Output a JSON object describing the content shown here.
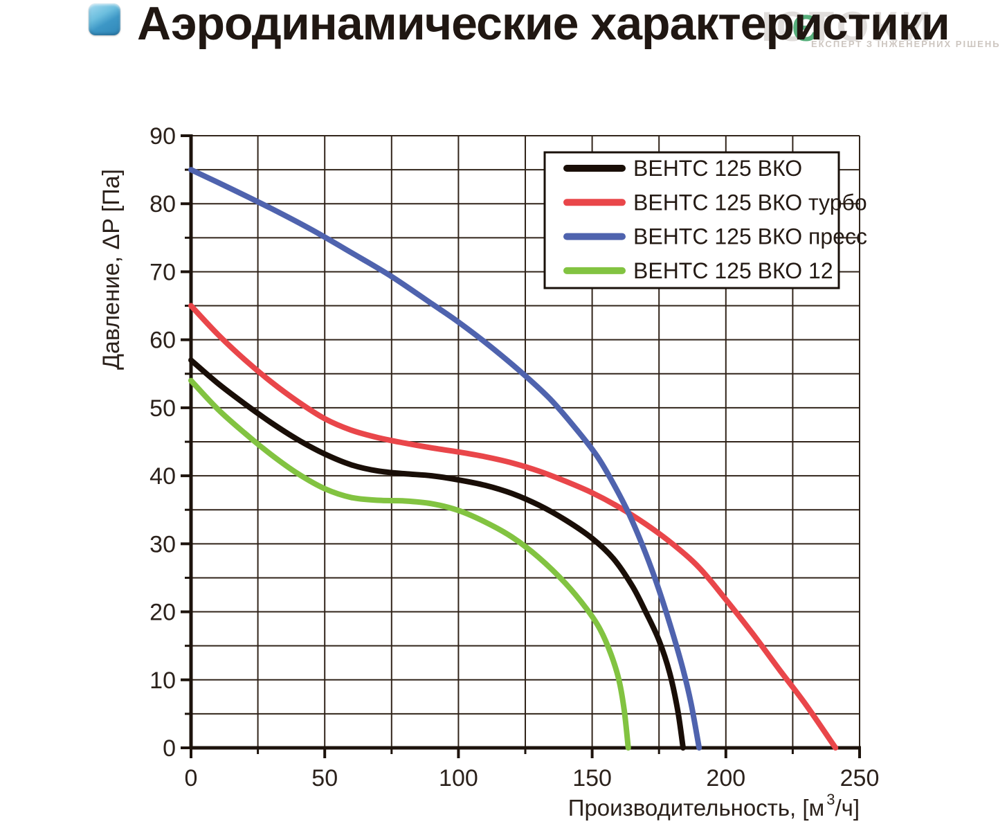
{
  "page": {
    "title": "Аэродинамические характеристики"
  },
  "watermark": {
    "text": "ІСТОКИ",
    "accent_glyph": "Є",
    "subtitle": "ЕКСПЕРТ З ІНЖЕНЕРНИХ РІШЕНЬ"
  },
  "chart_data": {
    "type": "line",
    "title": "",
    "xlabel_prefix": "Производительность, [м",
    "xlabel_sup": "3",
    "xlabel_suffix": "/ч]",
    "ylabel": "Давление, ΔP [Па]",
    "xlim": [
      0,
      250
    ],
    "ylim": [
      0,
      90
    ],
    "x_major_ticks": [
      0,
      50,
      100,
      150,
      200,
      250
    ],
    "y_major_ticks": [
      0,
      10,
      20,
      30,
      40,
      50,
      60,
      70,
      80,
      90
    ],
    "x_grid_step": 25,
    "y_grid_step": 5,
    "grid": true,
    "legend_position": "top-right",
    "colors": {
      "grid": "#31241a",
      "axis": "#1d130c",
      "tick_text": "#2b211b",
      "legend_border": "#19100a",
      "legend_text": "#241a14"
    },
    "series": [
      {
        "name": "ВЕНТС 125 ВКО",
        "color": "#190e07",
        "points": [
          [
            0,
            57
          ],
          [
            10,
            53.6
          ],
          [
            20,
            50.6
          ],
          [
            30,
            47.8
          ],
          [
            40,
            45.3
          ],
          [
            50,
            43.2
          ],
          [
            60,
            41.6
          ],
          [
            70,
            40.7
          ],
          [
            80,
            40.3
          ],
          [
            90,
            40.0
          ],
          [
            100,
            39.4
          ],
          [
            110,
            38.6
          ],
          [
            120,
            37.4
          ],
          [
            130,
            35.7
          ],
          [
            140,
            33.5
          ],
          [
            150,
            30.8
          ],
          [
            158,
            27.8
          ],
          [
            165,
            23.8
          ],
          [
            170,
            20.0
          ],
          [
            175,
            15.8
          ],
          [
            179,
            11.0
          ],
          [
            182,
            5.5
          ],
          [
            184,
            0
          ]
        ]
      },
      {
        "name": "ВЕНТС 125 ВКО турбо",
        "color": "#e9464a",
        "points": [
          [
            0,
            65
          ],
          [
            10,
            60.8
          ],
          [
            20,
            57.1
          ],
          [
            30,
            53.8
          ],
          [
            40,
            50.9
          ],
          [
            50,
            48.4
          ],
          [
            60,
            46.7
          ],
          [
            70,
            45.6
          ],
          [
            80,
            44.8
          ],
          [
            90,
            44.1
          ],
          [
            100,
            43.5
          ],
          [
            110,
            42.8
          ],
          [
            120,
            41.9
          ],
          [
            130,
            40.7
          ],
          [
            140,
            39.2
          ],
          [
            150,
            37.5
          ],
          [
            160,
            35.4
          ],
          [
            170,
            32.9
          ],
          [
            180,
            30.0
          ],
          [
            190,
            26.5
          ],
          [
            200,
            21.8
          ],
          [
            210,
            16.8
          ],
          [
            220,
            11.5
          ],
          [
            230,
            6.3
          ],
          [
            241,
            0
          ]
        ]
      },
      {
        "name": "ВЕНТС 125 ВКО пресс",
        "color": "#4f63ae",
        "points": [
          [
            0,
            85
          ],
          [
            15,
            82.2
          ],
          [
            30,
            79.3
          ],
          [
            45,
            76.2
          ],
          [
            60,
            72.8
          ],
          [
            75,
            69.3
          ],
          [
            90,
            65.3
          ],
          [
            100,
            62.6
          ],
          [
            112,
            59.0
          ],
          [
            125,
            54.7
          ],
          [
            135,
            51.0
          ],
          [
            145,
            46.4
          ],
          [
            152,
            42.8
          ],
          [
            158,
            38.8
          ],
          [
            164,
            34.2
          ],
          [
            170,
            28.6
          ],
          [
            175,
            23.2
          ],
          [
            180,
            17.0
          ],
          [
            184,
            11.5
          ],
          [
            187,
            6.5
          ],
          [
            190,
            0
          ]
        ]
      },
      {
        "name": "ВЕНТС 125 ВКО 12",
        "color": "#82c341",
        "points": [
          [
            0,
            54
          ],
          [
            10,
            49.8
          ],
          [
            20,
            46.3
          ],
          [
            30,
            43.1
          ],
          [
            40,
            40.3
          ],
          [
            50,
            38.1
          ],
          [
            60,
            36.8
          ],
          [
            70,
            36.4
          ],
          [
            80,
            36.3
          ],
          [
            90,
            35.9
          ],
          [
            100,
            34.9
          ],
          [
            110,
            33.2
          ],
          [
            120,
            31.0
          ],
          [
            130,
            28.0
          ],
          [
            140,
            24.2
          ],
          [
            148,
            20.4
          ],
          [
            153,
            17.4
          ],
          [
            157,
            13.8
          ],
          [
            160,
            10.0
          ],
          [
            162,
            5.5
          ],
          [
            163.5,
            0
          ]
        ]
      }
    ]
  }
}
